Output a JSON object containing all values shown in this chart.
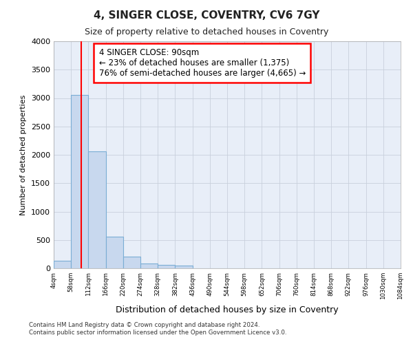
{
  "title": "4, SINGER CLOSE, COVENTRY, CV6 7GY",
  "subtitle": "Size of property relative to detached houses in Coventry",
  "xlabel": "Distribution of detached houses by size in Coventry",
  "ylabel": "Number of detached properties",
  "footer_line1": "Contains HM Land Registry data © Crown copyright and database right 2024.",
  "footer_line2": "Contains public sector information licensed under the Open Government Licence v3.0.",
  "bar_edges": [
    4,
    58,
    112,
    166,
    220,
    274,
    328,
    382,
    436,
    490,
    544,
    598,
    652,
    706,
    760,
    814,
    868,
    922,
    976,
    1030,
    1084
  ],
  "bar_heights": [
    130,
    3060,
    2060,
    560,
    210,
    80,
    55,
    50,
    0,
    0,
    0,
    0,
    0,
    0,
    0,
    0,
    0,
    0,
    0,
    0
  ],
  "bar_color": "#c8d8ee",
  "bar_edgecolor": "#7aadd4",
  "property_size": 90,
  "property_line_color": "red",
  "annotation_line1": "4 SINGER CLOSE: 90sqm",
  "annotation_line2": "← 23% of detached houses are smaller (1,375)",
  "annotation_line3": "76% of semi-detached houses are larger (4,665) →",
  "annotation_box_edgecolor": "red",
  "annotation_box_facecolor": "white",
  "ylim": [
    0,
    4000
  ],
  "yticks": [
    0,
    500,
    1000,
    1500,
    2000,
    2500,
    3000,
    3500,
    4000
  ],
  "grid_color": "#c8d0dc",
  "background_color": "#ffffff",
  "axes_background": "#e8eef8"
}
